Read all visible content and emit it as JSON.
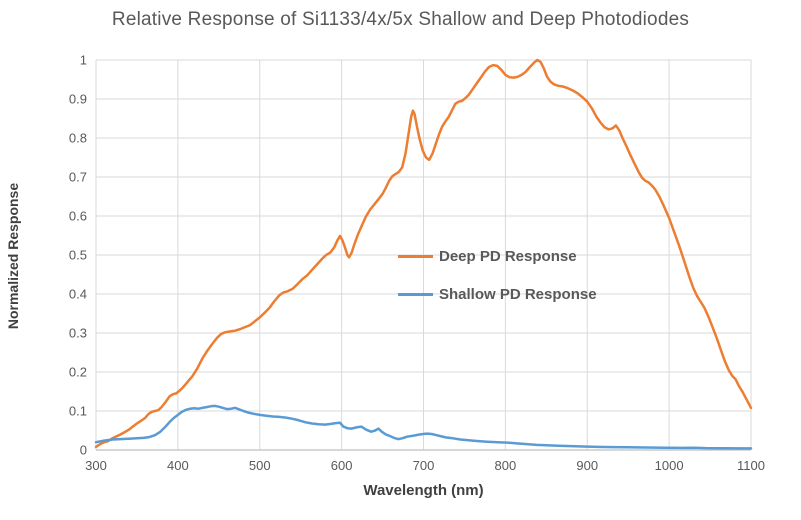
{
  "chart_data": {
    "type": "line",
    "title": "Relative Response of Si1133/4x/5x Shallow and Deep Photodiodes",
    "xlabel": "Wavelength (nm)",
    "ylabel": "Normalized Response",
    "xlim": [
      300,
      1100
    ],
    "ylim": [
      0,
      1
    ],
    "xticks": [
      300,
      400,
      500,
      600,
      700,
      800,
      900,
      1000,
      1100
    ],
    "yticks": [
      0,
      0.1,
      0.2,
      0.3,
      0.4,
      0.5,
      0.6,
      0.7,
      0.8,
      0.9,
      1
    ],
    "grid": true,
    "legend_position": "inside-right-middle",
    "series": [
      {
        "name": "Deep PD Response",
        "color": "#ED7D31",
        "points": [
          [
            300,
            0.008
          ],
          [
            305,
            0.015
          ],
          [
            310,
            0.02
          ],
          [
            315,
            0.023
          ],
          [
            320,
            0.03
          ],
          [
            325,
            0.035
          ],
          [
            330,
            0.04
          ],
          [
            335,
            0.046
          ],
          [
            340,
            0.052
          ],
          [
            345,
            0.06
          ],
          [
            350,
            0.068
          ],
          [
            355,
            0.075
          ],
          [
            360,
            0.082
          ],
          [
            364,
            0.092
          ],
          [
            368,
            0.098
          ],
          [
            372,
            0.1
          ],
          [
            376,
            0.102
          ],
          [
            380,
            0.11
          ],
          [
            385,
            0.123
          ],
          [
            390,
            0.138
          ],
          [
            394,
            0.143
          ],
          [
            398,
            0.145
          ],
          [
            402,
            0.152
          ],
          [
            406,
            0.16
          ],
          [
            412,
            0.175
          ],
          [
            418,
            0.19
          ],
          [
            424,
            0.21
          ],
          [
            430,
            0.235
          ],
          [
            436,
            0.255
          ],
          [
            442,
            0.272
          ],
          [
            448,
            0.288
          ],
          [
            453,
            0.298
          ],
          [
            458,
            0.302
          ],
          [
            464,
            0.304
          ],
          [
            470,
            0.306
          ],
          [
            476,
            0.31
          ],
          [
            482,
            0.315
          ],
          [
            488,
            0.32
          ],
          [
            494,
            0.33
          ],
          [
            500,
            0.34
          ],
          [
            506,
            0.352
          ],
          [
            512,
            0.365
          ],
          [
            518,
            0.382
          ],
          [
            524,
            0.397
          ],
          [
            529,
            0.404
          ],
          [
            534,
            0.407
          ],
          [
            540,
            0.413
          ],
          [
            546,
            0.425
          ],
          [
            552,
            0.438
          ],
          [
            558,
            0.448
          ],
          [
            564,
            0.462
          ],
          [
            570,
            0.476
          ],
          [
            576,
            0.49
          ],
          [
            581,
            0.5
          ],
          [
            586,
            0.506
          ],
          [
            591,
            0.52
          ],
          [
            595,
            0.538
          ],
          [
            598,
            0.549
          ],
          [
            601,
            0.538
          ],
          [
            604,
            0.52
          ],
          [
            607,
            0.5
          ],
          [
            609,
            0.494
          ],
          [
            612,
            0.505
          ],
          [
            616,
            0.53
          ],
          [
            620,
            0.553
          ],
          [
            625,
            0.577
          ],
          [
            630,
            0.6
          ],
          [
            635,
            0.617
          ],
          [
            640,
            0.63
          ],
          [
            645,
            0.643
          ],
          [
            650,
            0.657
          ],
          [
            654,
            0.672
          ],
          [
            658,
            0.69
          ],
          [
            662,
            0.702
          ],
          [
            666,
            0.708
          ],
          [
            670,
            0.713
          ],
          [
            674,
            0.725
          ],
          [
            678,
            0.76
          ],
          [
            682,
            0.815
          ],
          [
            685,
            0.855
          ],
          [
            687,
            0.87
          ],
          [
            689,
            0.862
          ],
          [
            692,
            0.83
          ],
          [
            695,
            0.8
          ],
          [
            699,
            0.768
          ],
          [
            703,
            0.75
          ],
          [
            707,
            0.744
          ],
          [
            711,
            0.76
          ],
          [
            715,
            0.785
          ],
          [
            719,
            0.81
          ],
          [
            723,
            0.83
          ],
          [
            727,
            0.843
          ],
          [
            731,
            0.855
          ],
          [
            735,
            0.872
          ],
          [
            739,
            0.888
          ],
          [
            743,
            0.893
          ],
          [
            747,
            0.895
          ],
          [
            751,
            0.902
          ],
          [
            755,
            0.91
          ],
          [
            760,
            0.925
          ],
          [
            765,
            0.94
          ],
          [
            770,
            0.955
          ],
          [
            775,
            0.97
          ],
          [
            780,
            0.982
          ],
          [
            785,
            0.987
          ],
          [
            790,
            0.985
          ],
          [
            795,
            0.975
          ],
          [
            800,
            0.962
          ],
          [
            805,
            0.956
          ],
          [
            810,
            0.955
          ],
          [
            815,
            0.957
          ],
          [
            820,
            0.962
          ],
          [
            825,
            0.97
          ],
          [
            830,
            0.982
          ],
          [
            835,
            0.993
          ],
          [
            839,
            1.0
          ],
          [
            843,
            0.995
          ],
          [
            847,
            0.978
          ],
          [
            851,
            0.957
          ],
          [
            855,
            0.945
          ],
          [
            859,
            0.938
          ],
          [
            864,
            0.934
          ],
          [
            870,
            0.932
          ],
          [
            876,
            0.928
          ],
          [
            882,
            0.922
          ],
          [
            888,
            0.915
          ],
          [
            894,
            0.905
          ],
          [
            900,
            0.893
          ],
          [
            906,
            0.875
          ],
          [
            911,
            0.855
          ],
          [
            916,
            0.84
          ],
          [
            921,
            0.828
          ],
          [
            926,
            0.822
          ],
          [
            931,
            0.825
          ],
          [
            935,
            0.832
          ],
          [
            939,
            0.82
          ],
          [
            943,
            0.8
          ],
          [
            948,
            0.778
          ],
          [
            953,
            0.755
          ],
          [
            958,
            0.733
          ],
          [
            963,
            0.712
          ],
          [
            967,
            0.698
          ],
          [
            971,
            0.69
          ],
          [
            975,
            0.686
          ],
          [
            979,
            0.678
          ],
          [
            983,
            0.668
          ],
          [
            988,
            0.65
          ],
          [
            993,
            0.628
          ],
          [
            1000,
            0.595
          ],
          [
            1006,
            0.56
          ],
          [
            1012,
            0.525
          ],
          [
            1018,
            0.487
          ],
          [
            1024,
            0.448
          ],
          [
            1029,
            0.418
          ],
          [
            1034,
            0.395
          ],
          [
            1038,
            0.382
          ],
          [
            1043,
            0.365
          ],
          [
            1048,
            0.342
          ],
          [
            1053,
            0.315
          ],
          [
            1058,
            0.288
          ],
          [
            1063,
            0.258
          ],
          [
            1068,
            0.228
          ],
          [
            1073,
            0.204
          ],
          [
            1077,
            0.19
          ],
          [
            1081,
            0.182
          ],
          [
            1085,
            0.165
          ],
          [
            1090,
            0.148
          ],
          [
            1095,
            0.128
          ],
          [
            1100,
            0.108
          ]
        ]
      },
      {
        "name": "Shallow PD Response",
        "color": "#5B9BD5",
        "points": [
          [
            300,
            0.02
          ],
          [
            310,
            0.024
          ],
          [
            320,
            0.027
          ],
          [
            330,
            0.028
          ],
          [
            340,
            0.029
          ],
          [
            350,
            0.03
          ],
          [
            358,
            0.031
          ],
          [
            365,
            0.033
          ],
          [
            372,
            0.038
          ],
          [
            378,
            0.046
          ],
          [
            384,
            0.058
          ],
          [
            390,
            0.072
          ],
          [
            395,
            0.082
          ],
          [
            400,
            0.09
          ],
          [
            405,
            0.098
          ],
          [
            410,
            0.103
          ],
          [
            415,
            0.106
          ],
          [
            420,
            0.107
          ],
          [
            425,
            0.106
          ],
          [
            430,
            0.108
          ],
          [
            435,
            0.11
          ],
          [
            440,
            0.112
          ],
          [
            445,
            0.113
          ],
          [
            450,
            0.111
          ],
          [
            455,
            0.108
          ],
          [
            460,
            0.105
          ],
          [
            465,
            0.106
          ],
          [
            470,
            0.108
          ],
          [
            475,
            0.104
          ],
          [
            480,
            0.1
          ],
          [
            486,
            0.096
          ],
          [
            492,
            0.093
          ],
          [
            500,
            0.09
          ],
          [
            508,
            0.088
          ],
          [
            516,
            0.086
          ],
          [
            524,
            0.085
          ],
          [
            532,
            0.083
          ],
          [
            540,
            0.08
          ],
          [
            548,
            0.076
          ],
          [
            556,
            0.071
          ],
          [
            564,
            0.068
          ],
          [
            572,
            0.066
          ],
          [
            580,
            0.065
          ],
          [
            587,
            0.067
          ],
          [
            593,
            0.069
          ],
          [
            598,
            0.07
          ],
          [
            602,
            0.06
          ],
          [
            607,
            0.056
          ],
          [
            612,
            0.055
          ],
          [
            618,
            0.058
          ],
          [
            624,
            0.06
          ],
          [
            630,
            0.052
          ],
          [
            636,
            0.047
          ],
          [
            641,
            0.05
          ],
          [
            645,
            0.055
          ],
          [
            649,
            0.047
          ],
          [
            654,
            0.04
          ],
          [
            659,
            0.036
          ],
          [
            664,
            0.031
          ],
          [
            669,
            0.028
          ],
          [
            674,
            0.03
          ],
          [
            680,
            0.034
          ],
          [
            688,
            0.037
          ],
          [
            696,
            0.04
          ],
          [
            704,
            0.042
          ],
          [
            710,
            0.041
          ],
          [
            716,
            0.038
          ],
          [
            722,
            0.035
          ],
          [
            728,
            0.032
          ],
          [
            736,
            0.03
          ],
          [
            745,
            0.027
          ],
          [
            755,
            0.025
          ],
          [
            765,
            0.023
          ],
          [
            778,
            0.021
          ],
          [
            790,
            0.02
          ],
          [
            802,
            0.019
          ],
          [
            814,
            0.017
          ],
          [
            826,
            0.015
          ],
          [
            838,
            0.013
          ],
          [
            850,
            0.012
          ],
          [
            865,
            0.011
          ],
          [
            880,
            0.01
          ],
          [
            895,
            0.009
          ],
          [
            912,
            0.008
          ],
          [
            930,
            0.0075
          ],
          [
            950,
            0.007
          ],
          [
            972,
            0.0065
          ],
          [
            995,
            0.006
          ],
          [
            1015,
            0.0055
          ],
          [
            1030,
            0.006
          ],
          [
            1045,
            0.005
          ],
          [
            1065,
            0.0045
          ],
          [
            1085,
            0.004
          ],
          [
            1100,
            0.004
          ]
        ]
      }
    ]
  },
  "colors": {
    "background": "#FFFFFF",
    "gridline": "#D9D9D9",
    "axis_line": "#BFBFBF",
    "title_text": "#595959",
    "tick_text": "#595959",
    "axis_title_text": "#404040",
    "legend_text": "#595959"
  }
}
